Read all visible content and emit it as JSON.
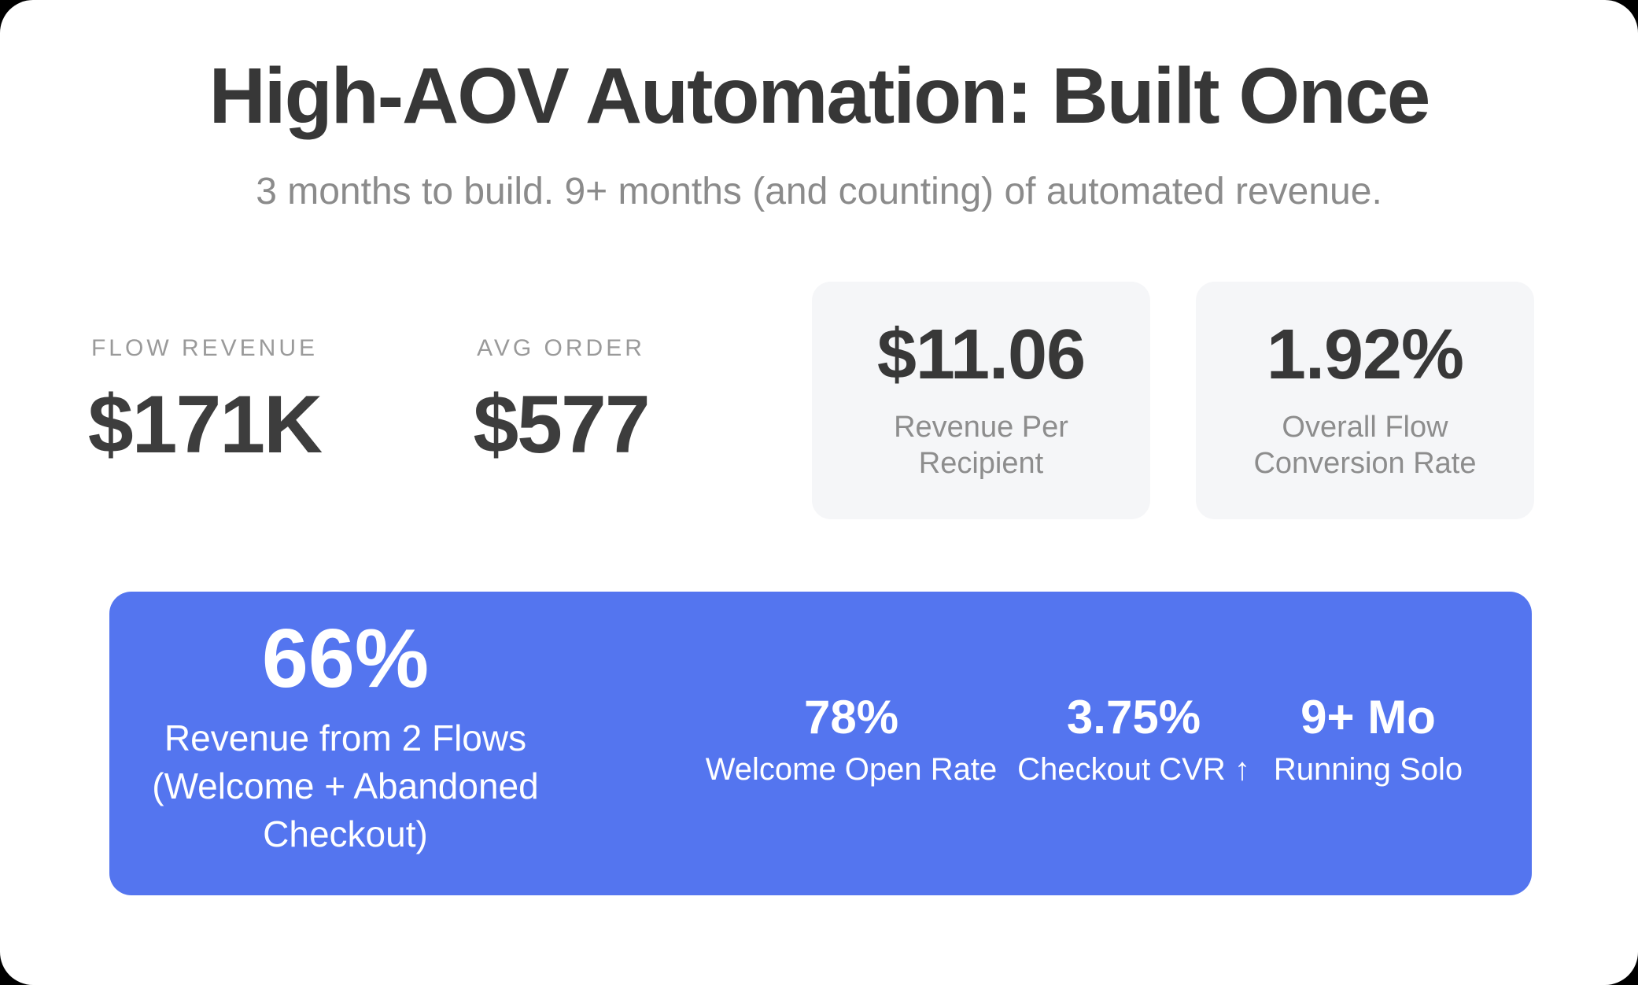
{
  "page": {
    "title": "High-AOV Automation: Built Once",
    "subtitle": "3 months to build. 9+ months (and counting) of automated revenue."
  },
  "stats": {
    "flow_revenue": {
      "label": "FLOW REVENUE",
      "value": "$171K"
    },
    "avg_order": {
      "label": "AVG ORDER",
      "value": "$577"
    }
  },
  "cards": [
    {
      "value": "$11.06",
      "label": "Revenue Per Recipient"
    },
    {
      "value": "1.92%",
      "label": "Overall Flow Conversion Rate"
    }
  ],
  "banner": {
    "highlight_value": "66%",
    "highlight_lines": [
      "Revenue from 2 Flows",
      "(Welcome + Abandoned",
      "Checkout)"
    ],
    "stats": [
      {
        "value": "78%",
        "label": "Welcome Open Rate"
      },
      {
        "value": "3.75%",
        "label": "Checkout CVR ↑"
      },
      {
        "value": "9+ Mo",
        "label": "Running Solo"
      }
    ]
  },
  "colors": {
    "accent_blue": "#5475ef",
    "card_bg": "#f5f6f8",
    "dark_text": "#373737",
    "muted_text": "#8d8d8d",
    "page_bg": "#000000"
  },
  "chart_data": {
    "type": "table",
    "title": "High-AOV Automation: Built Once",
    "subtitle": "3 months to build. 9+ months (and counting) of automated revenue.",
    "metrics": [
      {
        "label": "Flow Revenue",
        "value": "$171K"
      },
      {
        "label": "Avg Order",
        "value": "$577"
      },
      {
        "label": "Revenue Per Recipient",
        "value": "$11.06"
      },
      {
        "label": "Overall Flow Conversion Rate",
        "value": "1.92%"
      },
      {
        "label": "Revenue from 2 Flows (Welcome + Abandoned Checkout)",
        "value": "66%"
      },
      {
        "label": "Welcome Open Rate",
        "value": "78%"
      },
      {
        "label": "Checkout CVR",
        "value": "3.75%"
      },
      {
        "label": "Running Solo",
        "value": "9+ Mo"
      }
    ]
  }
}
